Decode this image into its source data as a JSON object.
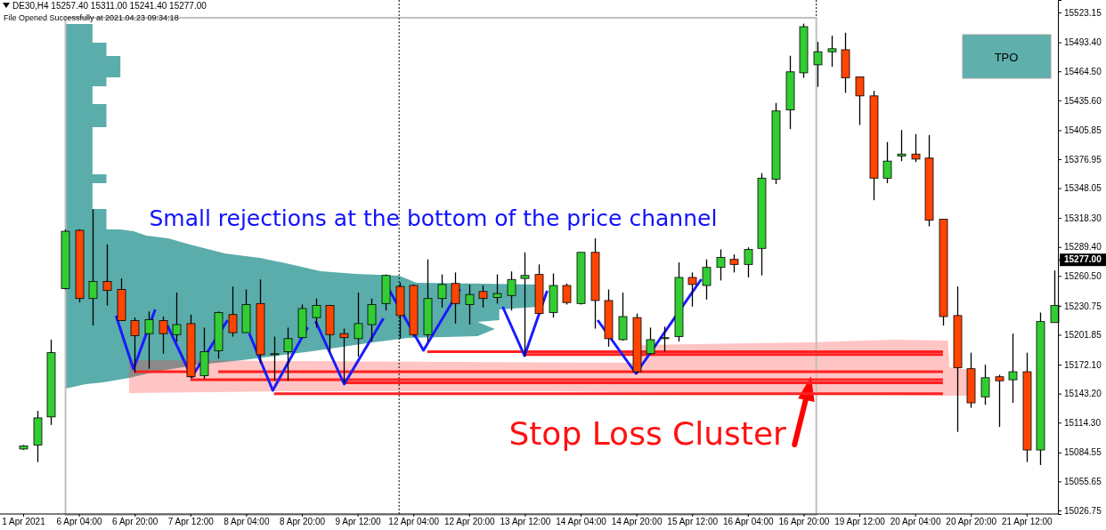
{
  "chart_data": {
    "type": "candlestick",
    "title": "DE30,H4  15257.40 15311.00 15241.40 15277.00",
    "subtitle": "File Opened Successfully at 2021.04.23 09:34:18",
    "annotations": [
      "Small rejections at the bottom of the price channel",
      "Stop Loss Cluster",
      "TPO"
    ],
    "categories": [
      "1 Apr 2021",
      null,
      null,
      null,
      "6 Apr 04:00",
      null,
      null,
      null,
      "6 Apr 20:00",
      null,
      null,
      null,
      "7 Apr 12:00",
      null,
      null,
      null,
      "8 Apr 04:00",
      null,
      null,
      null,
      "8 Apr 20:00",
      null,
      null,
      null,
      "9 Apr 12:00",
      null,
      null,
      null,
      "12 Apr 04:00",
      null,
      null,
      null,
      "12 Apr 20:00",
      null,
      null,
      null,
      "13 Apr 12:00",
      null,
      null,
      null,
      "14 Apr 04:00",
      null,
      null,
      null,
      "14 Apr 20:00",
      null,
      null,
      null,
      "15 Apr 12:00",
      null,
      null,
      null,
      "16 Apr 04:00",
      null,
      null,
      null,
      "16 Apr 20:00",
      null,
      null,
      null,
      "19 Apr 12:00",
      null,
      null,
      null,
      "20 Apr 04:00",
      null,
      null,
      null,
      "20 Apr 20:00",
      null,
      null,
      null,
      "21 Apr 12:00",
      null,
      null
    ],
    "ohlc": [
      [
        15088,
        15092,
        15087,
        15091
      ],
      [
        15092,
        15126,
        15075,
        15119
      ],
      [
        15120,
        15197,
        15112,
        15184
      ],
      [
        15248,
        15307,
        15247,
        15305
      ],
      [
        15306,
        15307,
        15234,
        15238
      ],
      [
        15238,
        15327,
        15211,
        15255
      ],
      [
        15255,
        15292,
        15231,
        15246
      ],
      [
        15247,
        15258,
        15216,
        15216
      ],
      [
        15216,
        15219,
        15164,
        15201
      ],
      [
        15203,
        15225,
        15168,
        15217
      ],
      [
        15216,
        15220,
        15183,
        15203
      ],
      [
        15202,
        15244,
        15195,
        15212
      ],
      [
        15213,
        15222,
        15159,
        15160
      ],
      [
        15161,
        15209,
        15158,
        15185
      ],
      [
        15186,
        15225,
        15178,
        15224
      ],
      [
        15222,
        15250,
        15200,
        15204
      ],
      [
        15204,
        15247,
        15204,
        15232
      ],
      [
        15233,
        15257,
        15173,
        15182
      ],
      [
        15182,
        15200,
        15156,
        15183
      ],
      [
        15185,
        15209,
        15156,
        15198
      ],
      [
        15199,
        15232,
        15199,
        15228
      ],
      [
        15219,
        15238,
        15209,
        15231
      ],
      [
        15231,
        15231,
        15185,
        15202
      ],
      [
        15203,
        15208,
        15154,
        15199
      ],
      [
        15198,
        15244,
        15180,
        15213
      ],
      [
        15212,
        15238,
        15195,
        15232
      ],
      [
        15233,
        15262,
        15226,
        15261
      ],
      [
        15250,
        15254,
        15198,
        15221
      ],
      [
        15251,
        15252,
        15200,
        15202
      ],
      [
        15202,
        15277,
        15195,
        15238
      ],
      [
        15238,
        15262,
        15229,
        15252
      ],
      [
        15253,
        15264,
        15213,
        15233
      ],
      [
        15232,
        15252,
        15212,
        15242
      ],
      [
        15245,
        15251,
        15229,
        15238
      ],
      [
        15239,
        15262,
        15233,
        15243
      ],
      [
        15241,
        15265,
        15226,
        15257
      ],
      [
        15258,
        15284,
        15180,
        15261
      ],
      [
        15262,
        15272,
        15223,
        15223
      ],
      [
        15224,
        15263,
        15219,
        15251
      ],
      [
        15251,
        15253,
        15232,
        15234
      ],
      [
        15233,
        15284,
        15232,
        15284
      ],
      [
        15284,
        15298,
        15208,
        15236
      ],
      [
        15236,
        15247,
        15190,
        15198
      ],
      [
        15197,
        15244,
        15196,
        15220
      ],
      [
        15219,
        15223,
        15163,
        15165
      ],
      [
        15183,
        15209,
        15182,
        15197
      ],
      [
        15198,
        15210,
        15185,
        15199
      ],
      [
        15200,
        15274,
        15195,
        15259
      ],
      [
        15259,
        15264,
        15230,
        15252
      ],
      [
        15251,
        15277,
        15237,
        15269
      ],
      [
        15269,
        15287,
        15256,
        15279
      ],
      [
        15277,
        15282,
        15264,
        15272
      ],
      [
        15272,
        15289,
        15259,
        15287
      ],
      [
        15288,
        15363,
        15261,
        15358
      ],
      [
        15357,
        15433,
        15352,
        15425
      ],
      [
        15426,
        15480,
        15407,
        15464
      ],
      [
        15463,
        15512,
        15458,
        15509
      ],
      [
        15471,
        15494,
        15449,
        15484
      ],
      [
        15484,
        15500,
        15469,
        15487
      ],
      [
        15486,
        15503,
        15443,
        15458
      ],
      [
        15459,
        15459,
        15411,
        15440
      ],
      [
        15440,
        15445,
        15336,
        15358
      ],
      [
        15358,
        15394,
        15353,
        15375
      ],
      [
        15380,
        15406,
        15375,
        15382
      ],
      [
        15382,
        15402,
        15374,
        15377
      ],
      [
        15378,
        15401,
        15310,
        15316
      ],
      [
        15317,
        15317,
        15211,
        15220
      ],
      [
        15221,
        15250,
        15105,
        15169
      ],
      [
        15168,
        15184,
        15129,
        15134
      ],
      [
        15140,
        15172,
        15132,
        15159
      ],
      [
        15160,
        15162,
        15110,
        15156
      ],
      [
        15157,
        15203,
        15134,
        15165
      ],
      [
        15165,
        15184,
        15075,
        15087
      ],
      [
        15087,
        15224,
        15072,
        15215
      ],
      [
        15214,
        15266,
        15214,
        15231
      ]
    ],
    "colors": [
      "#32cd32",
      "#32cd32",
      "#32cd32",
      "#32cd32",
      "#ff4500",
      "#32cd32",
      "#ff4500",
      "#ff4500",
      "#ff4500",
      "#32cd32",
      "#ff4500",
      "#32cd32",
      "#ff4500",
      "#32cd32",
      "#32cd32",
      "#ff4500",
      "#32cd32",
      "#ff4500",
      "#32cd32",
      "#32cd32",
      "#32cd32",
      "#32cd32",
      "#ff4500",
      "#ff4500",
      "#32cd32",
      "#32cd32",
      "#32cd32",
      "#ff4500",
      "#ff4500",
      "#32cd32",
      "#32cd32",
      "#ff4500",
      "#32cd32",
      "#ff4500",
      "#32cd32",
      "#32cd32",
      "#32cd32",
      "#ff4500",
      "#32cd32",
      "#ff4500",
      "#32cd32",
      "#ff4500",
      "#ff4500",
      "#32cd32",
      "#ff4500",
      "#32cd32",
      "#32cd32",
      "#32cd32",
      "#ff4500",
      "#32cd32",
      "#32cd32",
      "#ff4500",
      "#32cd32",
      "#32cd32",
      "#32cd32",
      "#32cd32",
      "#32cd32",
      "#32cd32",
      "#32cd32",
      "#ff4500",
      "#ff4500",
      "#ff4500",
      "#32cd32",
      "#32cd32",
      "#ff4500",
      "#ff4500",
      "#ff4500",
      "#ff4500",
      "#ff4500",
      "#32cd32",
      "#ff4500",
      "#32cd32",
      "#ff4500",
      "#32cd32",
      "#32cd32"
    ],
    "ylim": [
      15023.2,
      15535.6
    ],
    "yticks": [
      15026.75,
      {
        "value": 15055.65,
        "label": "15055.65"
      },
      {
        "value": 15084.55,
        "label": "15084.55"
      },
      {
        "value": 15114.3,
        "label": "15114.30"
      },
      {
        "value": 15143.2,
        "label": "15143.20"
      },
      {
        "value": 15172.1,
        "label": "15172.10"
      },
      {
        "value": 15201.85,
        "label": "15201.85"
      },
      {
        "value": 15230.75,
        "label": "15230.75"
      },
      {
        "value": 15260.5,
        "label": "15260.50"
      },
      {
        "value": 15277,
        "label": "15277.00"
      },
      {
        "value": 15289.4,
        "label": "15289.40"
      },
      {
        "value": 15318.3,
        "label": "15318.30"
      },
      {
        "value": 15348.05,
        "label": "15348.05"
      },
      {
        "value": 15376.95,
        "label": "15376.95"
      },
      {
        "value": 15405.85,
        "label": "15405.85"
      },
      {
        "value": 15435.6,
        "label": "15435.60"
      },
      {
        "value": 15464.5,
        "label": "15464.50"
      },
      {
        "value": 15493.4,
        "label": "15493.40"
      },
      15523.15
    ],
    "series": [
      {
        "type": "line",
        "color": "#ff2020",
        "values": [
          null,
          null,
          null,
          null,
          null,
          null,
          null,
          null,
          null,
          null,
          null,
          null,
          null,
          null,
          null,
          null,
          null,
          null,
          null,
          null,
          null,
          null,
          null,
          null,
          null,
          null,
          null,
          null,
          null,
          15185,
          15185,
          15185,
          15185,
          15185,
          15185,
          15185,
          15185,
          15185,
          15185,
          15185,
          15185,
          15185,
          15185,
          15185,
          15185,
          15185,
          15185,
          15185,
          15185,
          15185,
          15185,
          15185,
          15185,
          15185,
          15185,
          15185,
          15185,
          15185,
          15185,
          15185,
          15185,
          15185,
          15185,
          15185,
          15185,
          15185,
          15185,
          null,
          null,
          null,
          null,
          null,
          null,
          null,
          null
        ]
      },
      {
        "type": "line",
        "color": "#ff2020",
        "values": [
          null,
          null,
          null,
          null,
          null,
          null,
          null,
          null,
          null,
          null,
          null,
          null,
          null,
          null,
          null,
          null,
          null,
          null,
          null,
          null,
          null,
          null,
          null,
          null,
          null,
          null,
          null,
          null,
          null,
          null,
          null,
          null,
          null,
          null,
          null,
          null,
          15182,
          15182,
          15182,
          15182,
          15182,
          15182,
          15182,
          15182,
          15182,
          15182,
          15182,
          15182,
          15182,
          15182,
          15182,
          15182,
          15182,
          15182,
          15182,
          15182,
          15182,
          15182,
          15182,
          15182,
          15182,
          15182,
          15182,
          15182,
          15182,
          15182,
          15182,
          null,
          null,
          null,
          null,
          null,
          null,
          null,
          null
        ]
      },
      {
        "type": "line",
        "color": "#ff2020",
        "values": [
          null,
          null,
          null,
          null,
          null,
          null,
          null,
          null,
          15165,
          15165,
          15165,
          15165,
          15165,
          null,
          15165,
          15165,
          15165,
          15165,
          15165,
          15165,
          15165,
          15165,
          15165,
          15165,
          15165,
          15165,
          15165,
          15165,
          15165,
          15165,
          15165,
          15165,
          15165,
          15165,
          15165,
          15165,
          15165,
          15165,
          15165,
          15165,
          15165,
          15165,
          15165,
          15165,
          15165,
          15165,
          15165,
          15165,
          15165,
          15165,
          15165,
          15165,
          15165,
          15165,
          15165,
          15165,
          15165,
          15165,
          15165,
          15165,
          15165,
          15165,
          15165,
          15165,
          15165,
          15165,
          15165,
          null,
          null,
          null,
          null,
          null,
          null,
          null,
          null
        ]
      },
      {
        "type": "line",
        "color": "#ff2020",
        "values": [
          null,
          null,
          null,
          null,
          null,
          null,
          null,
          null,
          null,
          null,
          null,
          null,
          15157,
          15157,
          15157,
          15157,
          15157,
          15157,
          15157,
          15157,
          15157,
          15157,
          15157,
          15157,
          15157,
          15157,
          15157,
          15157,
          15157,
          15157,
          15157,
          15157,
          15157,
          15157,
          15157,
          15157,
          15157,
          15157,
          15157,
          15157,
          15157,
          15157,
          15157,
          15157,
          15157,
          15157,
          15157,
          15157,
          15157,
          15157,
          15157,
          15157,
          15157,
          15157,
          15157,
          15157,
          15157,
          15157,
          15157,
          15157,
          15157,
          15157,
          15157,
          15157,
          15157,
          15157,
          15157,
          null,
          null,
          null,
          null,
          null,
          null,
          null,
          null
        ]
      },
      {
        "type": "line",
        "color": "#ff2020",
        "values": [
          null,
          null,
          null,
          null,
          null,
          null,
          null,
          null,
          null,
          null,
          null,
          null,
          null,
          null,
          null,
          null,
          null,
          null,
          null,
          null,
          null,
          null,
          null,
          15154,
          15154,
          15154,
          15154,
          15154,
          15154,
          15154,
          15154,
          15154,
          15154,
          15154,
          15154,
          15154,
          15154,
          15154,
          15154,
          15154,
          15154,
          15154,
          15154,
          15154,
          15154,
          15154,
          15154,
          15154,
          15154,
          15154,
          15154,
          15154,
          15154,
          15154,
          15154,
          15154,
          15154,
          15154,
          15154,
          15154,
          15154,
          15154,
          15154,
          15154,
          15154,
          15154,
          15154,
          null,
          null,
          null,
          null,
          null,
          null,
          null,
          null
        ]
      },
      {
        "type": "line",
        "color": "#ff2020",
        "values": [
          null,
          null,
          null,
          null,
          null,
          null,
          null,
          null,
          null,
          null,
          null,
          null,
          null,
          null,
          null,
          null,
          null,
          null,
          15143,
          15143,
          15143,
          15143,
          15143,
          15143,
          15143,
          15143,
          15143,
          15143,
          15143,
          15143,
          15143,
          15143,
          15143,
          15143,
          15143,
          15143,
          15143,
          15143,
          15143,
          15143,
          15143,
          15143,
          15143,
          15143,
          15143,
          15143,
          15143,
          15143,
          15143,
          15143,
          15143,
          15143,
          15143,
          15143,
          15143,
          15143,
          15143,
          15143,
          15143,
          15143,
          15143,
          15143,
          15143,
          15143,
          15143,
          15143,
          15143,
          null,
          null,
          null,
          null,
          null,
          null,
          null,
          null
        ]
      }
    ]
  }
}
